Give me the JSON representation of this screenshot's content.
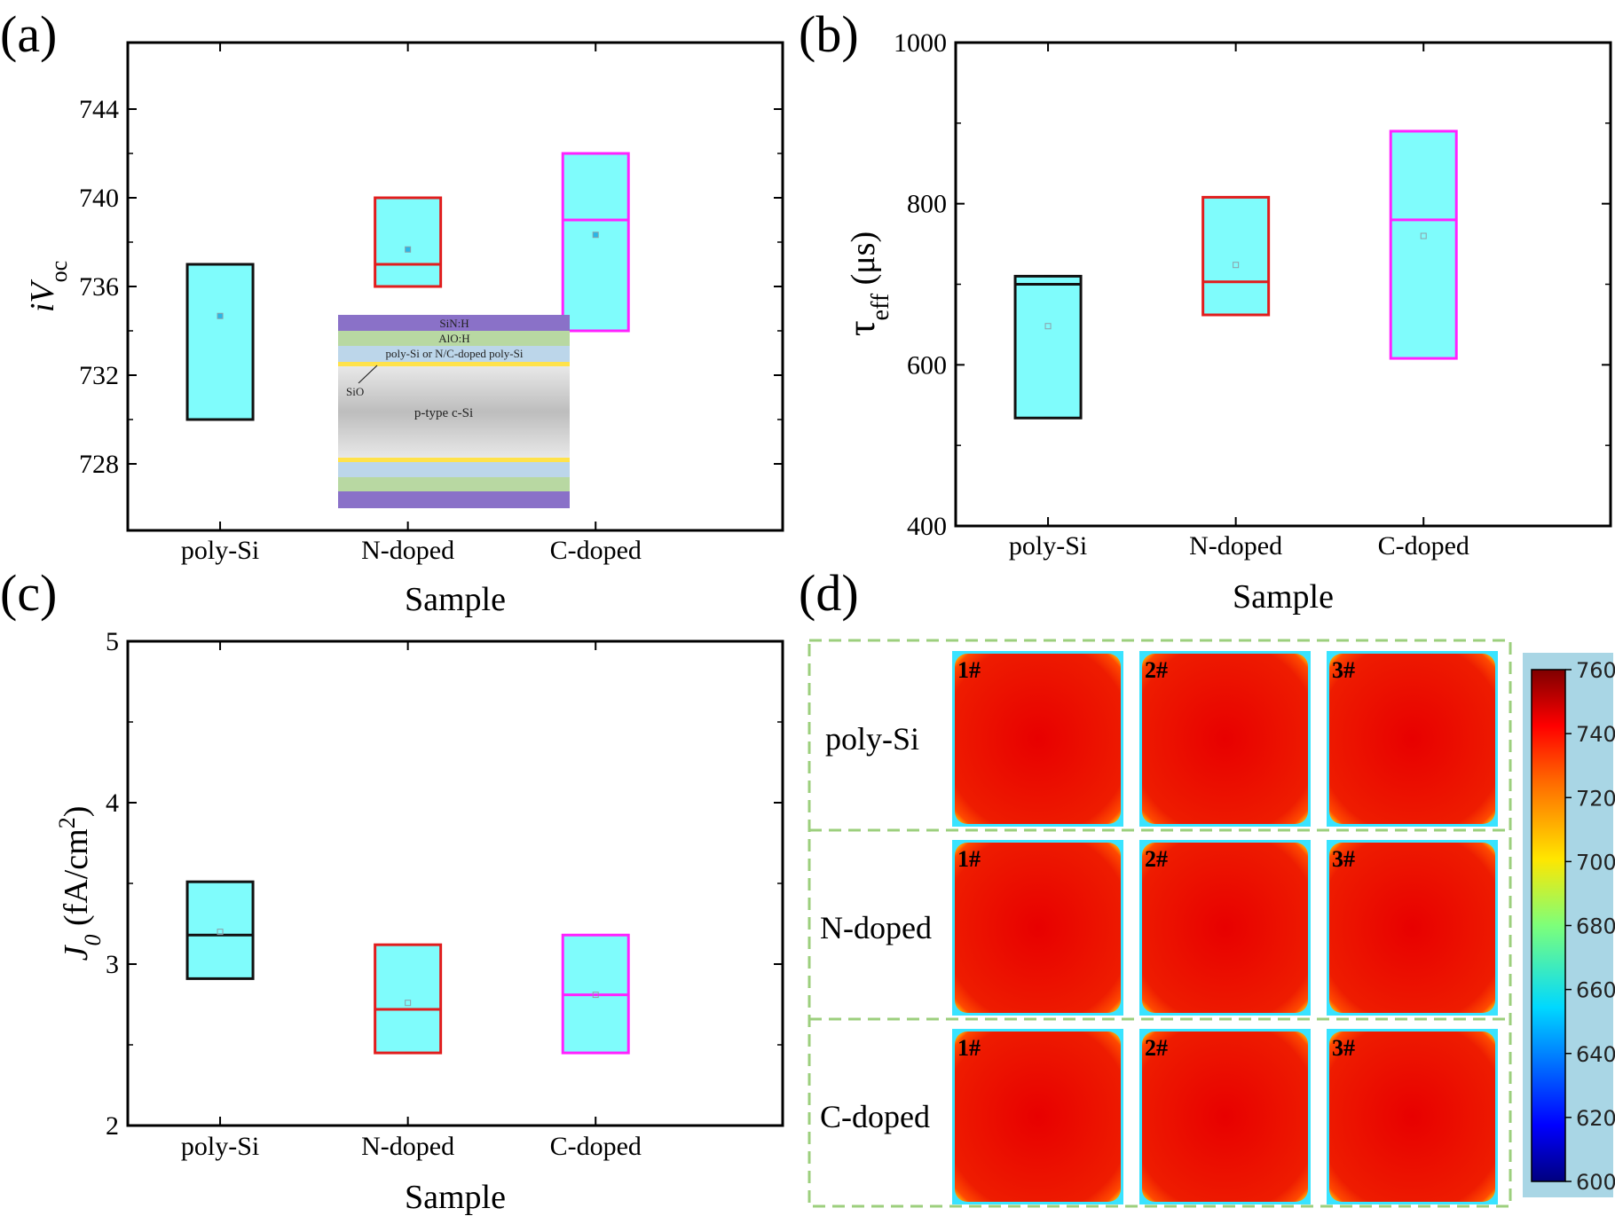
{
  "panels": [
    {
      "letter": "(a)"
    },
    {
      "letter": "(b)"
    },
    {
      "letter": "(c)"
    },
    {
      "letter": "(d)"
    }
  ],
  "chart_data": [
    {
      "type": "box",
      "panel": "(a)",
      "categories": [
        "poly-Si",
        "N-doped",
        "C-doped"
      ],
      "xlabel": "Sample",
      "ylabel_main": "iV",
      "ylabel_sub": "oc",
      "ylim": [
        725,
        747
      ],
      "yticks": [
        728,
        732,
        736,
        740,
        744
      ],
      "boxes": [
        {
          "name": "poly-Si",
          "min": 730,
          "q1": 730,
          "median": 737,
          "q3": 737,
          "max": 737,
          "mean": 734.67,
          "edge": "#111111"
        },
        {
          "name": "N-doped",
          "min": 736,
          "q1": 736,
          "median": 737,
          "q3": 740,
          "max": 740,
          "mean": 737.67,
          "edge": "#e11d1d"
        },
        {
          "name": "C-doped",
          "min": 734,
          "q1": 734,
          "median": 739,
          "q3": 742,
          "max": 742,
          "mean": 738.33,
          "edge": "#ff22ff"
        }
      ],
      "fill": "#7ffcfc",
      "inset": {
        "layers": [
          "SiN:H",
          "AlO:H",
          "poly-Si or N/C-doped poly-Si",
          "p-type c-Si"
        ],
        "sio_label": "SiO"
      }
    },
    {
      "type": "box",
      "panel": "(b)",
      "categories": [
        "poly-Si",
        "N-doped",
        "C-doped"
      ],
      "xlabel": "Sample",
      "ylabel_main": "τ",
      "ylabel_sub": "eff",
      "ylabel_unit": " (μs)",
      "ylim": [
        400,
        1000
      ],
      "yticks": [
        400,
        600,
        800,
        1000
      ],
      "boxes": [
        {
          "name": "poly-Si",
          "min": 534,
          "q1": 534,
          "median": 700,
          "q3": 710,
          "max": 710,
          "mean": 648,
          "edge": "#111111"
        },
        {
          "name": "N-doped",
          "min": 662,
          "q1": 662,
          "median": 703,
          "q3": 808,
          "max": 808,
          "mean": 724,
          "edge": "#e11d1d"
        },
        {
          "name": "C-doped",
          "min": 608,
          "q1": 608,
          "median": 780,
          "q3": 890,
          "max": 890,
          "mean": 760,
          "edge": "#ff22ff"
        }
      ],
      "fill": "#7ffcfc"
    },
    {
      "type": "box",
      "panel": "(c)",
      "categories": [
        "poly-Si",
        "N-doped",
        "C-doped"
      ],
      "xlabel": "Sample",
      "ylabel_main": "J",
      "ylabel_sub": "0",
      "ylabel_unit": " (fA/cm",
      "ylabel_sup": "2",
      "ylabel_close": ")",
      "ylim": [
        2,
        5
      ],
      "yticks": [
        2,
        3,
        4,
        5
      ],
      "boxes": [
        {
          "name": "poly-Si",
          "min": 2.91,
          "q1": 2.91,
          "median": 3.18,
          "q3": 3.51,
          "max": 3.51,
          "mean": 3.2,
          "edge": "#111111"
        },
        {
          "name": "N-doped",
          "min": 2.45,
          "q1": 2.45,
          "median": 2.72,
          "q3": 3.12,
          "max": 3.12,
          "mean": 2.76,
          "edge": "#e11d1d"
        },
        {
          "name": "C-doped",
          "min": 2.45,
          "q1": 2.45,
          "median": 2.81,
          "q3": 3.18,
          "max": 3.18,
          "mean": 2.81,
          "edge": "#ff22ff"
        }
      ],
      "fill": "#7ffcfc"
    },
    {
      "type": "heatmap",
      "panel": "(d)",
      "rows": [
        "poly-Si",
        "N-doped",
        "C-doped"
      ],
      "tags": [
        "1#",
        "2#",
        "3#"
      ],
      "colorbar": {
        "min": 600,
        "max": 760,
        "ticks": [
          600,
          620,
          640,
          660,
          680,
          700,
          720,
          740,
          760
        ]
      }
    }
  ]
}
